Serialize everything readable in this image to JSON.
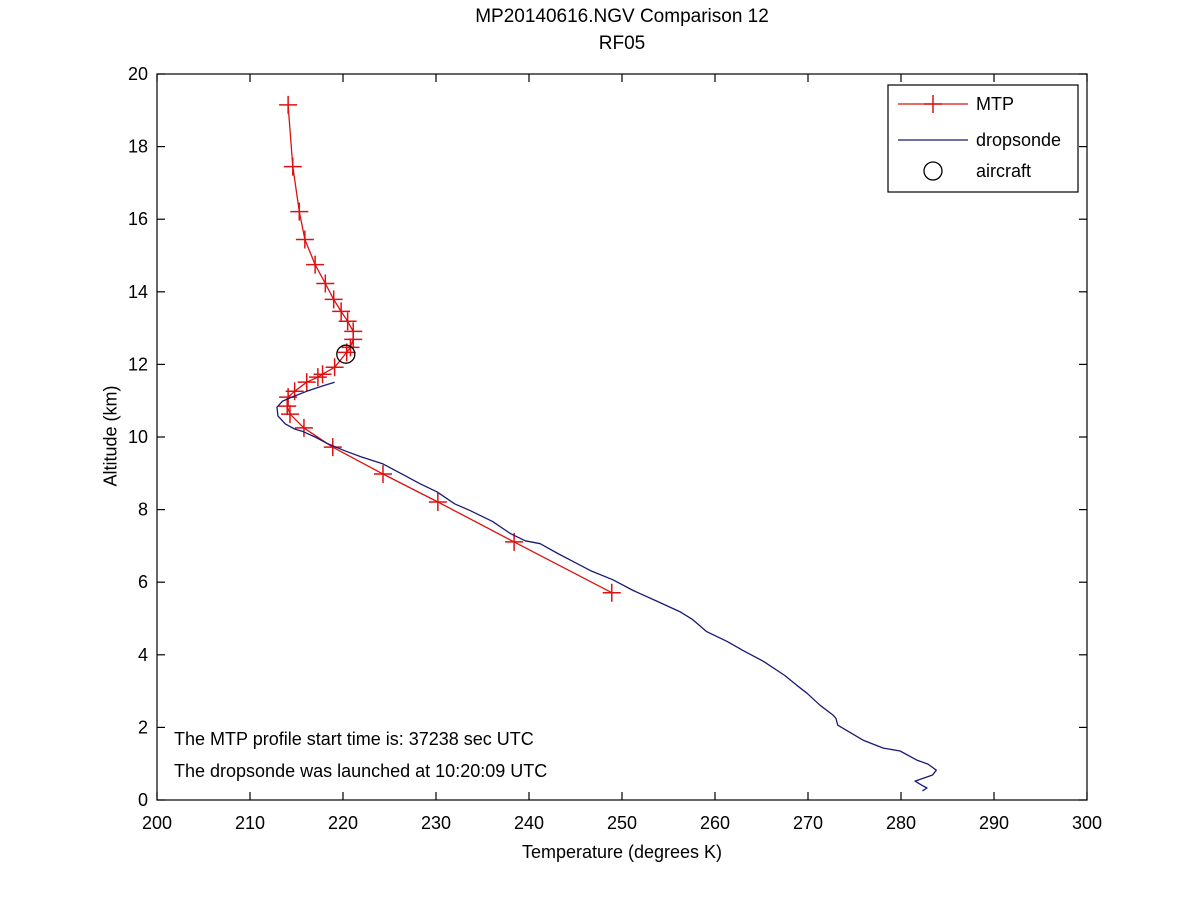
{
  "figure": {
    "background": "#ffffff"
  },
  "chart_data": {
    "type": "line",
    "title": "MP20140616.NGV Comparison 12",
    "subtitle": "RF05",
    "xlabel": "Temperature (degrees K)",
    "ylabel": "Altitude (km)",
    "xlim": [
      200,
      300
    ],
    "ylim": [
      0,
      20
    ],
    "x_ticks": [
      200,
      210,
      220,
      230,
      240,
      250,
      260,
      270,
      280,
      290,
      300
    ],
    "y_ticks": [
      0,
      2,
      4,
      6,
      8,
      10,
      12,
      14,
      16,
      18,
      20
    ],
    "grid": false,
    "axis_color": "#000000",
    "legend": {
      "position": "top-right",
      "entries": [
        {
          "label": "MTP",
          "marker": "plus",
          "color": "#dd1111"
        },
        {
          "label": "dropsonde",
          "marker": "line",
          "color": "#1a1a75"
        },
        {
          "label": "aircraft",
          "marker": "circle",
          "color": "#000000"
        }
      ]
    },
    "annotations": [
      {
        "text": "The MTP profile start time is: 37238 sec UTC"
      },
      {
        "text": "The dropsonde was launched at 10:20:09 UTC"
      }
    ],
    "series": [
      {
        "name": "MTP",
        "style": "line+marker",
        "marker": "plus",
        "color": "#dd1111",
        "points": [
          [
            214.1,
            19.15
          ],
          [
            214.6,
            17.45
          ],
          [
            215.3,
            16.21
          ],
          [
            215.9,
            15.44
          ],
          [
            217.0,
            14.75
          ],
          [
            218.1,
            14.23
          ],
          [
            219.0,
            13.79
          ],
          [
            219.8,
            13.46
          ],
          [
            220.5,
            13.19
          ],
          [
            221.1,
            12.91
          ],
          [
            221.1,
            12.69
          ],
          [
            220.8,
            12.47
          ],
          [
            220.4,
            12.33
          ],
          [
            219.1,
            11.92
          ],
          [
            217.8,
            11.73
          ],
          [
            217.3,
            11.65
          ],
          [
            216.1,
            11.51
          ],
          [
            214.8,
            11.26
          ],
          [
            214.1,
            11.1
          ],
          [
            214.0,
            10.85
          ],
          [
            214.3,
            10.63
          ],
          [
            215.8,
            10.25
          ],
          [
            218.9,
            9.72
          ],
          [
            224.3,
            8.98
          ],
          [
            230.2,
            8.21
          ],
          [
            238.4,
            7.11
          ],
          [
            248.9,
            5.71
          ]
        ]
      },
      {
        "name": "dropsonde",
        "style": "line",
        "marker": "none",
        "color": "#1a1a75",
        "points": [
          [
            219.1,
            11.51
          ],
          [
            217.7,
            11.4
          ],
          [
            216.1,
            11.26
          ],
          [
            214.8,
            11.13
          ],
          [
            213.5,
            10.99
          ],
          [
            212.9,
            10.82
          ],
          [
            213.0,
            10.58
          ],
          [
            213.8,
            10.36
          ],
          [
            214.8,
            10.22
          ],
          [
            215.6,
            10.16
          ],
          [
            217.0,
            10.0
          ],
          [
            218.4,
            9.81
          ],
          [
            220.2,
            9.62
          ],
          [
            222.0,
            9.45
          ],
          [
            224.3,
            9.26
          ],
          [
            226.7,
            8.93
          ],
          [
            228.3,
            8.71
          ],
          [
            230.1,
            8.49
          ],
          [
            232.0,
            8.16
          ],
          [
            233.7,
            7.97
          ],
          [
            236.1,
            7.67
          ],
          [
            238.0,
            7.34
          ],
          [
            239.6,
            7.14
          ],
          [
            241.2,
            7.06
          ],
          [
            243.1,
            6.79
          ],
          [
            244.6,
            6.59
          ],
          [
            246.6,
            6.32
          ],
          [
            249.0,
            6.07
          ],
          [
            251.2,
            5.77
          ],
          [
            253.8,
            5.47
          ],
          [
            256.2,
            5.19
          ],
          [
            257.6,
            4.97
          ],
          [
            259.1,
            4.64
          ],
          [
            261.3,
            4.37
          ],
          [
            263.0,
            4.12
          ],
          [
            265.2,
            3.82
          ],
          [
            267.5,
            3.43
          ],
          [
            268.8,
            3.16
          ],
          [
            269.9,
            2.94
          ],
          [
            271.3,
            2.61
          ],
          [
            272.7,
            2.34
          ],
          [
            273.0,
            2.25
          ],
          [
            273.2,
            2.06
          ],
          [
            275.9,
            1.65
          ],
          [
            278.1,
            1.43
          ],
          [
            279.9,
            1.35
          ],
          [
            281.7,
            1.1
          ],
          [
            282.9,
            0.99
          ],
          [
            283.8,
            0.82
          ],
          [
            283.4,
            0.69
          ],
          [
            282.4,
            0.6
          ],
          [
            281.5,
            0.52
          ],
          [
            282.2,
            0.41
          ],
          [
            282.8,
            0.33
          ],
          [
            282.3,
            0.25
          ]
        ]
      },
      {
        "name": "aircraft",
        "style": "marker",
        "marker": "circle",
        "color": "#000000",
        "points": [
          [
            220.3,
            12.28
          ]
        ]
      }
    ]
  }
}
